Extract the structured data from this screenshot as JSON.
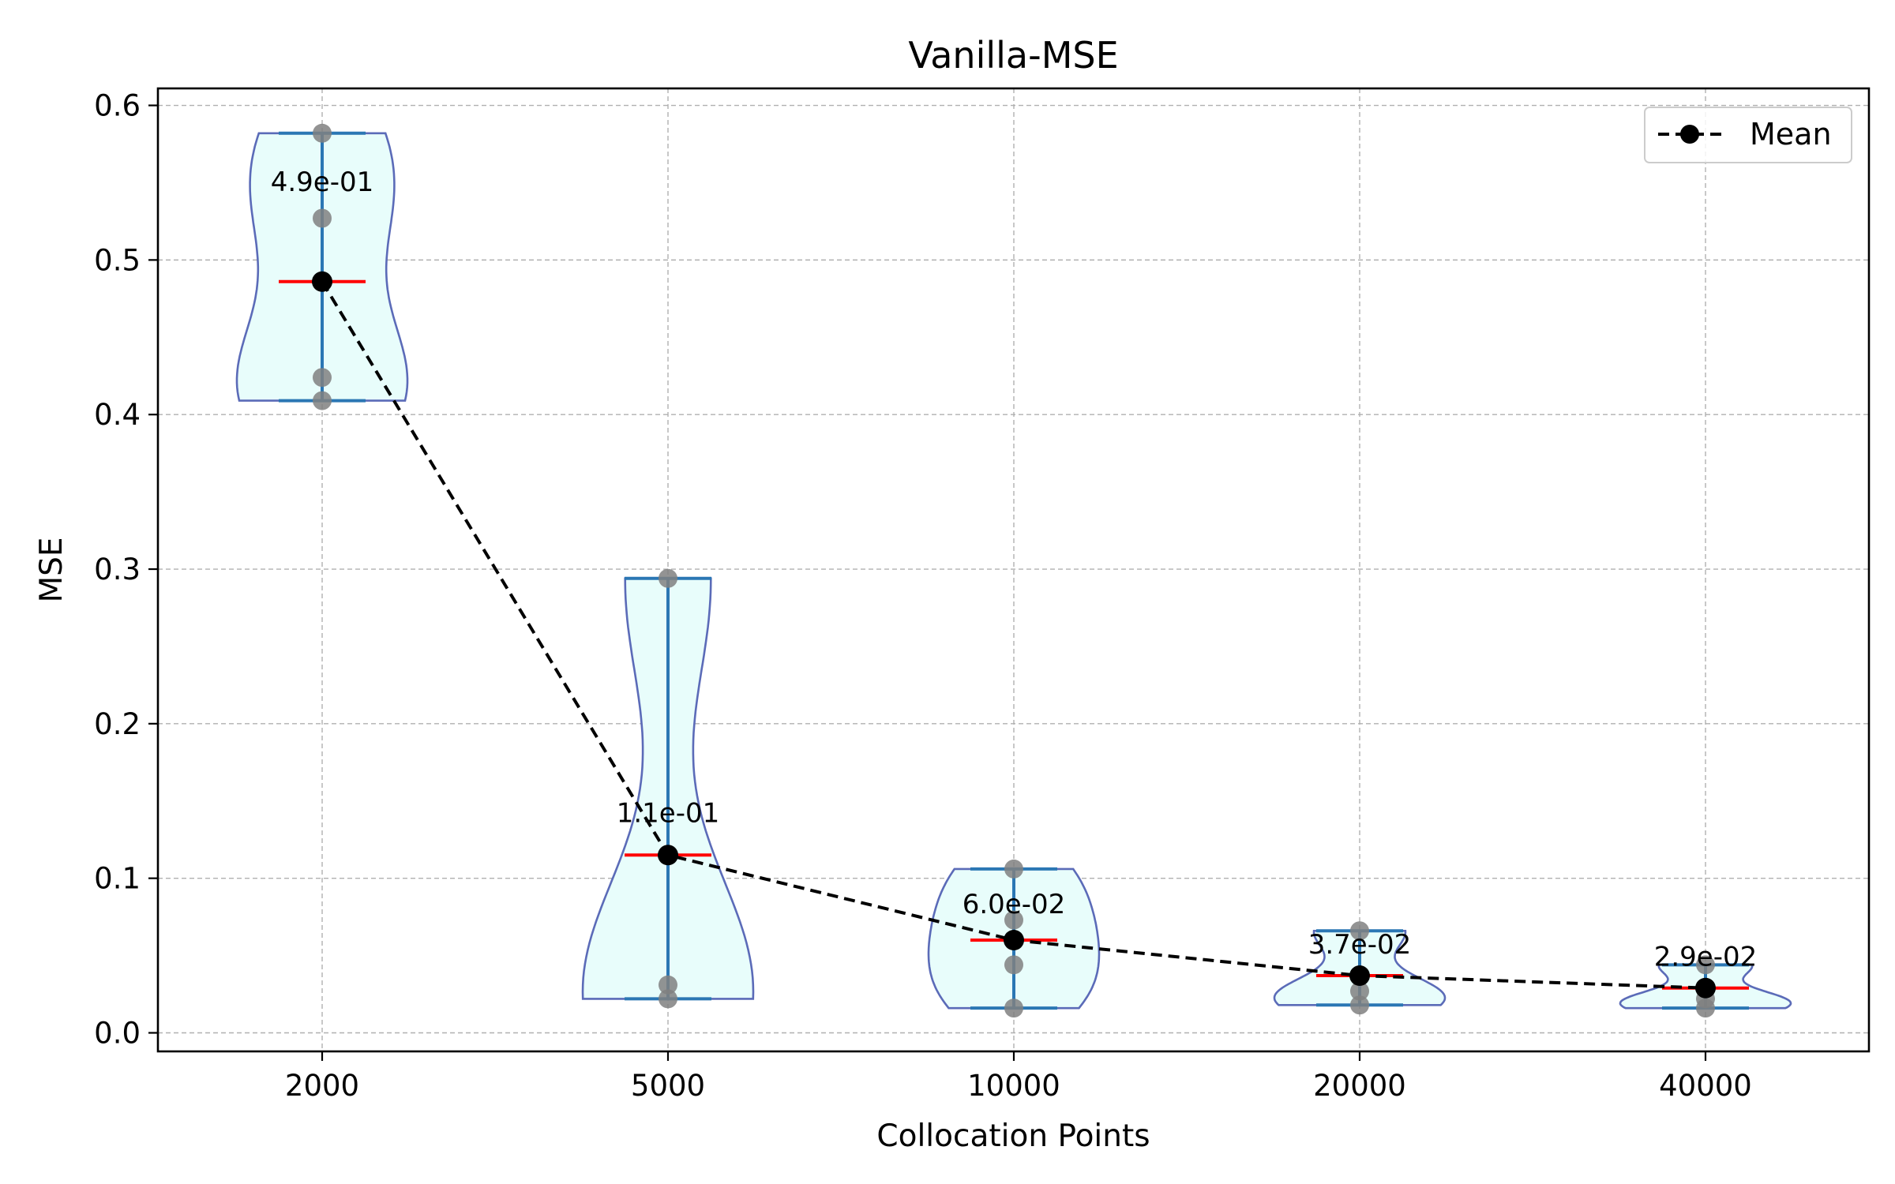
{
  "chart_data": {
    "type": "violin",
    "title": "Vanilla-MSE",
    "xlabel": "Collocation Points",
    "ylabel": "MSE",
    "categories": [
      "2000",
      "5000",
      "10000",
      "20000",
      "40000"
    ],
    "ylim": [
      -0.012,
      0.611
    ],
    "yticks": [
      "0.0",
      "0.1",
      "0.2",
      "0.3",
      "0.4",
      "0.5",
      "0.6"
    ],
    "yticks_values": [
      0.0,
      0.1,
      0.2,
      0.3,
      0.4,
      0.5,
      0.6
    ],
    "grid": true,
    "legend_position": "top-right",
    "series": [
      {
        "name": "Mean",
        "values": [
          0.486,
          0.115,
          0.06,
          0.037,
          0.029
        ],
        "labels": [
          "4.9e-01",
          "1.1e-01",
          "6.0e-02",
          "3.7e-02",
          "2.9e-02"
        ]
      }
    ],
    "distributions": [
      {
        "category": "2000",
        "min": 0.409,
        "max": 0.582,
        "mean": 0.486,
        "points": [
          0.582,
          0.527,
          0.424,
          0.409
        ]
      },
      {
        "category": "5000",
        "min": 0.022,
        "max": 0.294,
        "mean": 0.115,
        "points": [
          0.294,
          0.031,
          0.022
        ]
      },
      {
        "category": "10000",
        "min": 0.016,
        "max": 0.106,
        "mean": 0.06,
        "points": [
          0.106,
          0.073,
          0.044,
          0.016
        ]
      },
      {
        "category": "20000",
        "min": 0.018,
        "max": 0.066,
        "mean": 0.037,
        "points": [
          0.066,
          0.027,
          0.018
        ]
      },
      {
        "category": "40000",
        "min": 0.016,
        "max": 0.044,
        "mean": 0.029,
        "points": [
          0.044,
          0.022,
          0.016
        ]
      }
    ],
    "colors": {
      "violin_fill": "#e8fdfb",
      "violin_edge": "#5b6bb8",
      "whisker": "#2b77b4",
      "mean_bar": "#ff0000",
      "sample_point": "#808080",
      "mean_line": "#000000",
      "grid": "#b0b0b0"
    }
  }
}
